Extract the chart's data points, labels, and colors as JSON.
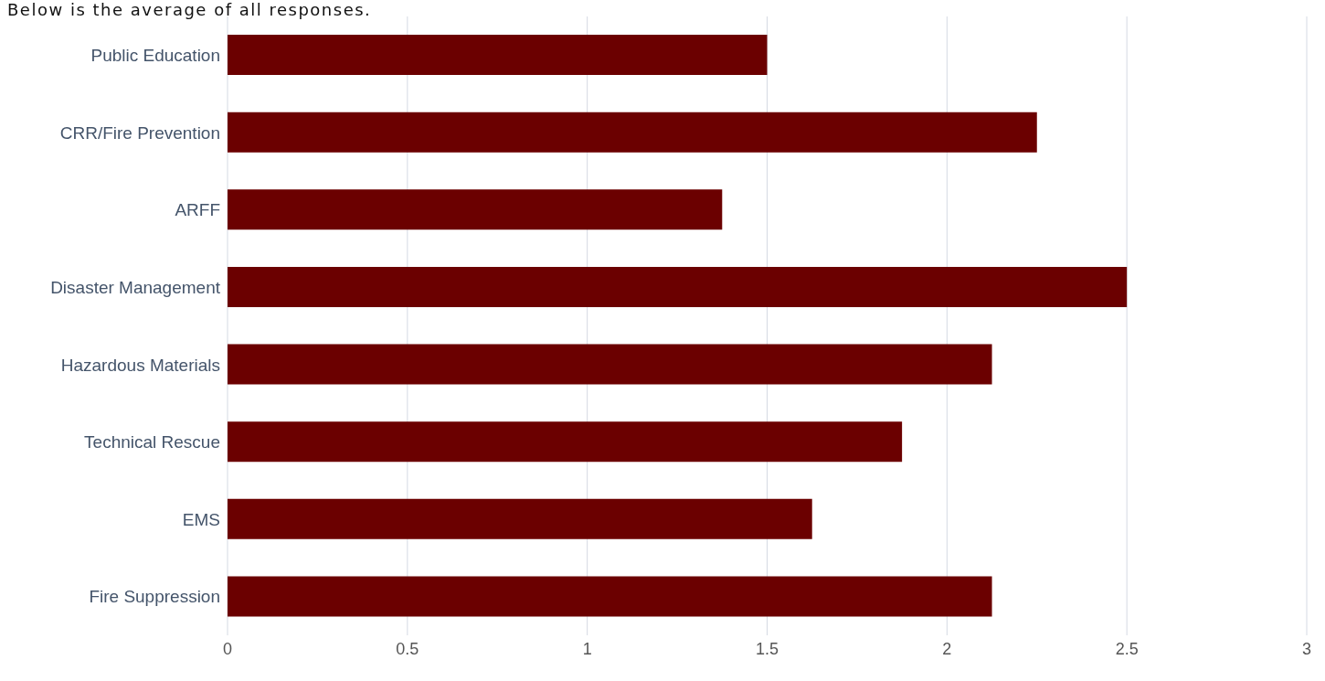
{
  "chart_data": {
    "type": "bar",
    "orientation": "horizontal",
    "title": "Below is the average of all responses.",
    "categories": [
      "Public Education",
      "CRR/Fire Prevention",
      "ARFF",
      "Disaster Management",
      "Hazardous Materials",
      "Technical Rescue",
      "EMS",
      "Fire Suppression"
    ],
    "values": [
      1.5,
      2.25,
      1.375,
      2.5,
      2.125,
      1.875,
      1.625,
      2.125
    ],
    "color": "#6b0000",
    "xlim": [
      0,
      3
    ],
    "xticks": [
      0,
      0.5,
      1,
      1.5,
      2,
      2.5,
      3
    ],
    "grid": "x"
  }
}
